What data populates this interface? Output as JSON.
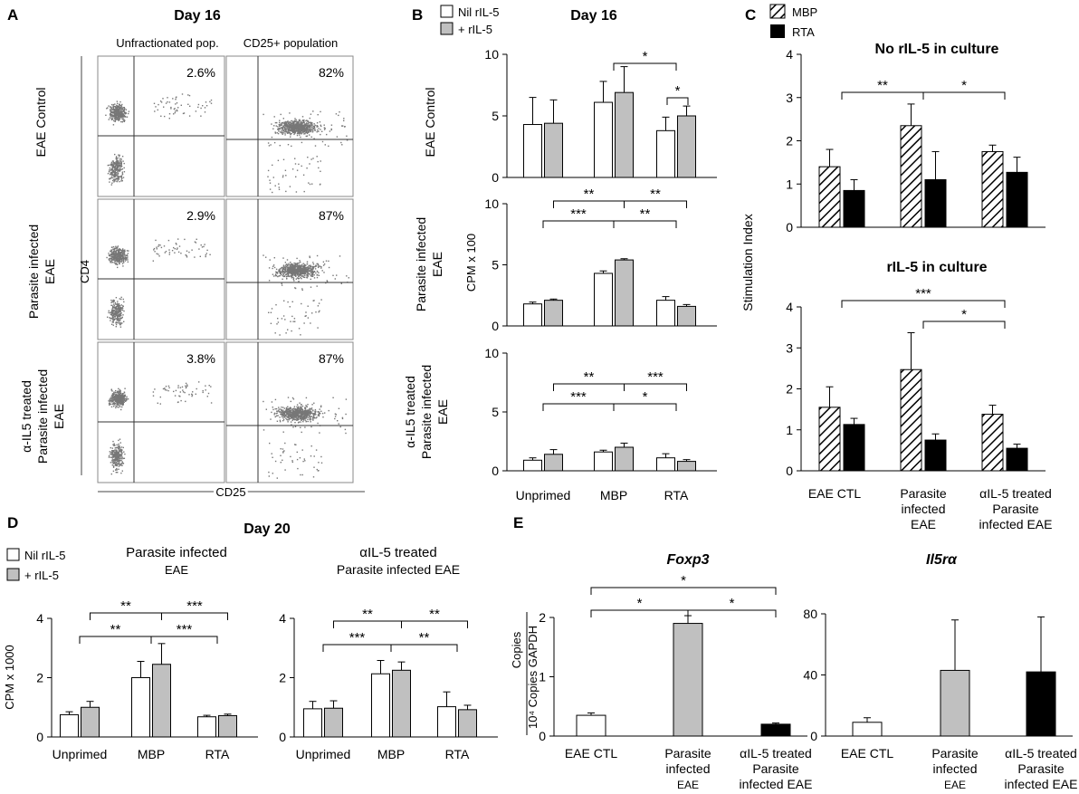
{
  "colors": {
    "white": "#ffffff",
    "gray": "#c0c0c0",
    "black": "#000000",
    "dot": "#777777",
    "axis": "#000000"
  },
  "panels": {
    "A": {
      "letter": "A",
      "title": "Day 16",
      "col_headers": [
        "Unfractionated pop.",
        "CD25+ population"
      ],
      "row_labels": [
        [
          "EAE Control"
        ],
        [
          "Parasite infected",
          "EAE"
        ],
        [
          "α-IL5 treated",
          "Parasite infected",
          "EAE"
        ]
      ],
      "percents": [
        [
          "2.6%",
          "82%"
        ],
        [
          "2.9%",
          "87%"
        ],
        [
          "3.8%",
          "87%"
        ]
      ],
      "ylabel": "CD4",
      "xlabel": "CD25"
    },
    "B": {
      "letter": "B",
      "title": "Day 16",
      "ylabel": "CPM x 100",
      "legend": [
        "Nil rIL-5",
        "+ rIL-5"
      ],
      "row_labels": [
        [
          "EAE Control"
        ],
        [
          "Parasite infected",
          "EAE"
        ],
        [
          "α-IL5 treated",
          "Parasite infected",
          "EAE"
        ]
      ],
      "categories": [
        "Unprimed",
        "MBP",
        "RTA"
      ]
    },
    "C": {
      "letter": "C",
      "ylabel": "Stimulation Index",
      "legend": [
        "MBP",
        "RTA"
      ],
      "subtitles": [
        "No rIL-5 in culture",
        "rIL-5 in culture"
      ],
      "categories": [
        [
          "EAE CTL"
        ],
        [
          "Parasite",
          "infected",
          "EAE"
        ],
        [
          "αIL-5 treated",
          "Parasite",
          "infected EAE"
        ]
      ]
    },
    "D": {
      "letter": "D",
      "title": "Day 20",
      "ylabel": "CPM x 1000",
      "legend": [
        "Nil rIL-5",
        "+ rIL-5"
      ],
      "subtitles": [
        [
          "Parasite infected",
          "EAE"
        ],
        [
          "αIL-5 treated",
          "Parasite infected EAE"
        ]
      ],
      "categories": [
        "Unprimed",
        "MBP",
        "RTA"
      ]
    },
    "E": {
      "letter": "E",
      "titles": [
        "Foxp3",
        "Il5rα"
      ],
      "ylabel": [
        "Copies",
        "10⁴ Copies GAPDH"
      ],
      "categories": [
        [
          "EAE CTL"
        ],
        [
          "Parasite",
          "infected",
          "EAE"
        ],
        [
          "αIL-5 treated",
          "Parasite",
          "infected EAE"
        ]
      ]
    }
  },
  "chart_data": [
    {
      "id": "B1",
      "type": "bar",
      "title": "EAE Control",
      "ylim": [
        0,
        10
      ],
      "yticks": [
        0,
        5,
        10
      ],
      "categories": [
        "Unprimed",
        "MBP",
        "RTA"
      ],
      "series": [
        {
          "name": "Nil rIL-5",
          "values": [
            4.3,
            6.1,
            3.8
          ],
          "errors": [
            2.2,
            1.7,
            1.1
          ]
        },
        {
          "name": "+ rIL-5",
          "values": [
            4.4,
            6.9,
            5.0
          ],
          "errors": [
            1.9,
            2.1,
            0.8
          ]
        }
      ],
      "sig": [
        {
          "a": 1,
          "b": 2,
          "level": 0,
          "label": "*"
        },
        {
          "a": 2.5,
          "b": 2.5,
          "level": -1,
          "label": "*"
        }
      ]
    },
    {
      "id": "B2",
      "type": "bar",
      "title": "Parasite infected EAE",
      "ylim": [
        0,
        10
      ],
      "yticks": [
        0,
        5,
        10
      ],
      "categories": [
        "Unprimed",
        "MBP",
        "RTA"
      ],
      "series": [
        {
          "name": "Nil rIL-5",
          "values": [
            1.8,
            4.3,
            2.1
          ],
          "errors": [
            0.15,
            0.2,
            0.3
          ]
        },
        {
          "name": "+ rIL-5",
          "values": [
            2.1,
            5.4,
            1.6
          ],
          "errors": [
            0.1,
            0.1,
            0.15
          ]
        }
      ],
      "sig": [
        {
          "a": 0,
          "b": 1,
          "level": 0,
          "label": "***"
        },
        {
          "a": 1,
          "b": 2,
          "level": 0,
          "label": "**"
        },
        {
          "a": 0.5,
          "b": 1.5,
          "level": 1,
          "label": "**"
        },
        {
          "a": 1.5,
          "b": 2.5,
          "level": 1,
          "label": "**"
        }
      ]
    },
    {
      "id": "B3",
      "type": "bar",
      "title": "α-IL5 treated Parasite infected EAE",
      "ylim": [
        0,
        10
      ],
      "yticks": [
        0,
        5,
        10
      ],
      "categories": [
        "Unprimed",
        "MBP",
        "RTA"
      ],
      "series": [
        {
          "name": "Nil rIL-5",
          "values": [
            0.9,
            1.6,
            1.1
          ],
          "errors": [
            0.2,
            0.15,
            0.35
          ]
        },
        {
          "name": "+ rIL-5",
          "values": [
            1.4,
            2.0,
            0.8
          ],
          "errors": [
            0.4,
            0.35,
            0.15
          ]
        }
      ],
      "sig": [
        {
          "a": 0,
          "b": 1,
          "level": 0,
          "label": "***"
        },
        {
          "a": 1,
          "b": 2,
          "level": 0,
          "label": "*"
        },
        {
          "a": 0.5,
          "b": 1.5,
          "level": 1,
          "label": "**"
        },
        {
          "a": 1.5,
          "b": 2.5,
          "level": 1,
          "label": "***"
        }
      ]
    },
    {
      "id": "C1",
      "type": "bar",
      "title": "No rIL-5 in culture",
      "ylim": [
        0,
        4
      ],
      "yticks": [
        0,
        1,
        2,
        3,
        4
      ],
      "categories": [
        "EAE CTL",
        "Parasite infected EAE",
        "αIL-5 treated Parasite infected EAE"
      ],
      "series": [
        {
          "name": "MBP",
          "values": [
            1.4,
            2.35,
            1.75
          ],
          "errors": [
            0.4,
            0.5,
            0.15
          ]
        },
        {
          "name": "RTA",
          "values": [
            0.85,
            1.1,
            1.27
          ],
          "errors": [
            0.25,
            0.65,
            0.35
          ]
        }
      ],
      "sig": [
        {
          "a": 0,
          "b": 1,
          "level": 0,
          "label": "**"
        },
        {
          "a": 1,
          "b": 2,
          "level": 0,
          "label": "*"
        }
      ]
    },
    {
      "id": "C2",
      "type": "bar",
      "title": "rIL-5 in culture",
      "ylim": [
        0,
        4
      ],
      "yticks": [
        0,
        1,
        2,
        3,
        4
      ],
      "categories": [
        "EAE CTL",
        "Parasite infected EAE",
        "αIL-5 treated Parasite infected EAE"
      ],
      "series": [
        {
          "name": "MBP",
          "values": [
            1.55,
            2.47,
            1.38
          ],
          "errors": [
            0.5,
            0.9,
            0.22
          ]
        },
        {
          "name": "RTA",
          "values": [
            1.13,
            0.75,
            0.55
          ],
          "errors": [
            0.15,
            0.15,
            0.1
          ]
        }
      ],
      "sig": [
        {
          "a": 1,
          "b": 2,
          "level": 0,
          "label": "*"
        },
        {
          "a": 0,
          "b": 2,
          "level": 1,
          "label": "***"
        }
      ]
    },
    {
      "id": "D1",
      "type": "bar",
      "title": "Parasite infected EAE",
      "ylim": [
        0,
        4
      ],
      "yticks": [
        0,
        2,
        4
      ],
      "categories": [
        "Unprimed",
        "MBP",
        "RTA"
      ],
      "series": [
        {
          "name": "Nil rIL-5",
          "values": [
            0.75,
            2.0,
            0.68
          ],
          "errors": [
            0.1,
            0.55,
            0.05
          ]
        },
        {
          "name": "+ rIL-5",
          "values": [
            1.0,
            2.45,
            0.72
          ],
          "errors": [
            0.2,
            0.7,
            0.05
          ]
        }
      ],
      "sig": [
        {
          "a": 0,
          "b": 1,
          "level": 0,
          "label": "**"
        },
        {
          "a": 1,
          "b": 2,
          "level": 0,
          "label": "***"
        },
        {
          "a": 0.5,
          "b": 1.5,
          "level": 1,
          "label": "**"
        },
        {
          "a": 1.5,
          "b": 2.5,
          "level": 1,
          "label": "***"
        }
      ]
    },
    {
      "id": "D2",
      "type": "bar",
      "title": "αIL-5 treated Parasite infected EAE",
      "ylim": [
        0,
        4
      ],
      "yticks": [
        0,
        2,
        4
      ],
      "categories": [
        "Unprimed",
        "MBP",
        "RTA"
      ],
      "series": [
        {
          "name": "Nil rIL-5",
          "values": [
            0.95,
            2.13,
            1.02
          ],
          "errors": [
            0.25,
            0.45,
            0.5
          ]
        },
        {
          "name": "+ rIL-5",
          "values": [
            0.97,
            2.25,
            0.92
          ],
          "errors": [
            0.25,
            0.28,
            0.15
          ]
        }
      ],
      "sig": [
        {
          "a": 0,
          "b": 1,
          "level": 0,
          "label": "***"
        },
        {
          "a": 1,
          "b": 2,
          "level": 0,
          "label": "**"
        },
        {
          "a": 0.5,
          "b": 1.5,
          "level": 1,
          "label": "**"
        },
        {
          "a": 1.5,
          "b": 2.5,
          "level": 1,
          "label": "**"
        }
      ]
    },
    {
      "id": "E1",
      "type": "bar",
      "title": "Foxp3",
      "ylim": [
        0,
        2
      ],
      "yticks": [
        0,
        1,
        2
      ],
      "categories": [
        "EAE CTL",
        "Parasite infected EAE",
        "αIL-5 treated Parasite infected EAE"
      ],
      "values": [
        0.35,
        1.9,
        0.2
      ],
      "errors": [
        0.04,
        0.13,
        0.02
      ],
      "colors": [
        "#ffffff",
        "#c0c0c0",
        "#000000"
      ],
      "sig": [
        {
          "a": 0,
          "b": 1,
          "level": 0,
          "label": "*"
        },
        {
          "a": 1,
          "b": 2,
          "level": 0,
          "label": "*"
        },
        {
          "a": 0,
          "b": 2,
          "level": 1,
          "label": "*"
        }
      ]
    },
    {
      "id": "E2",
      "type": "bar",
      "title": "Il5rα",
      "ylim": [
        0,
        80
      ],
      "yticks": [
        0,
        40,
        80
      ],
      "categories": [
        "EAE CTL",
        "Parasite infected EAE",
        "αIL-5 treated Parasite infected EAE"
      ],
      "values": [
        9,
        43,
        42
      ],
      "errors": [
        3,
        33,
        36
      ],
      "colors": [
        "#ffffff",
        "#c0c0c0",
        "#000000"
      ],
      "sig": []
    }
  ]
}
